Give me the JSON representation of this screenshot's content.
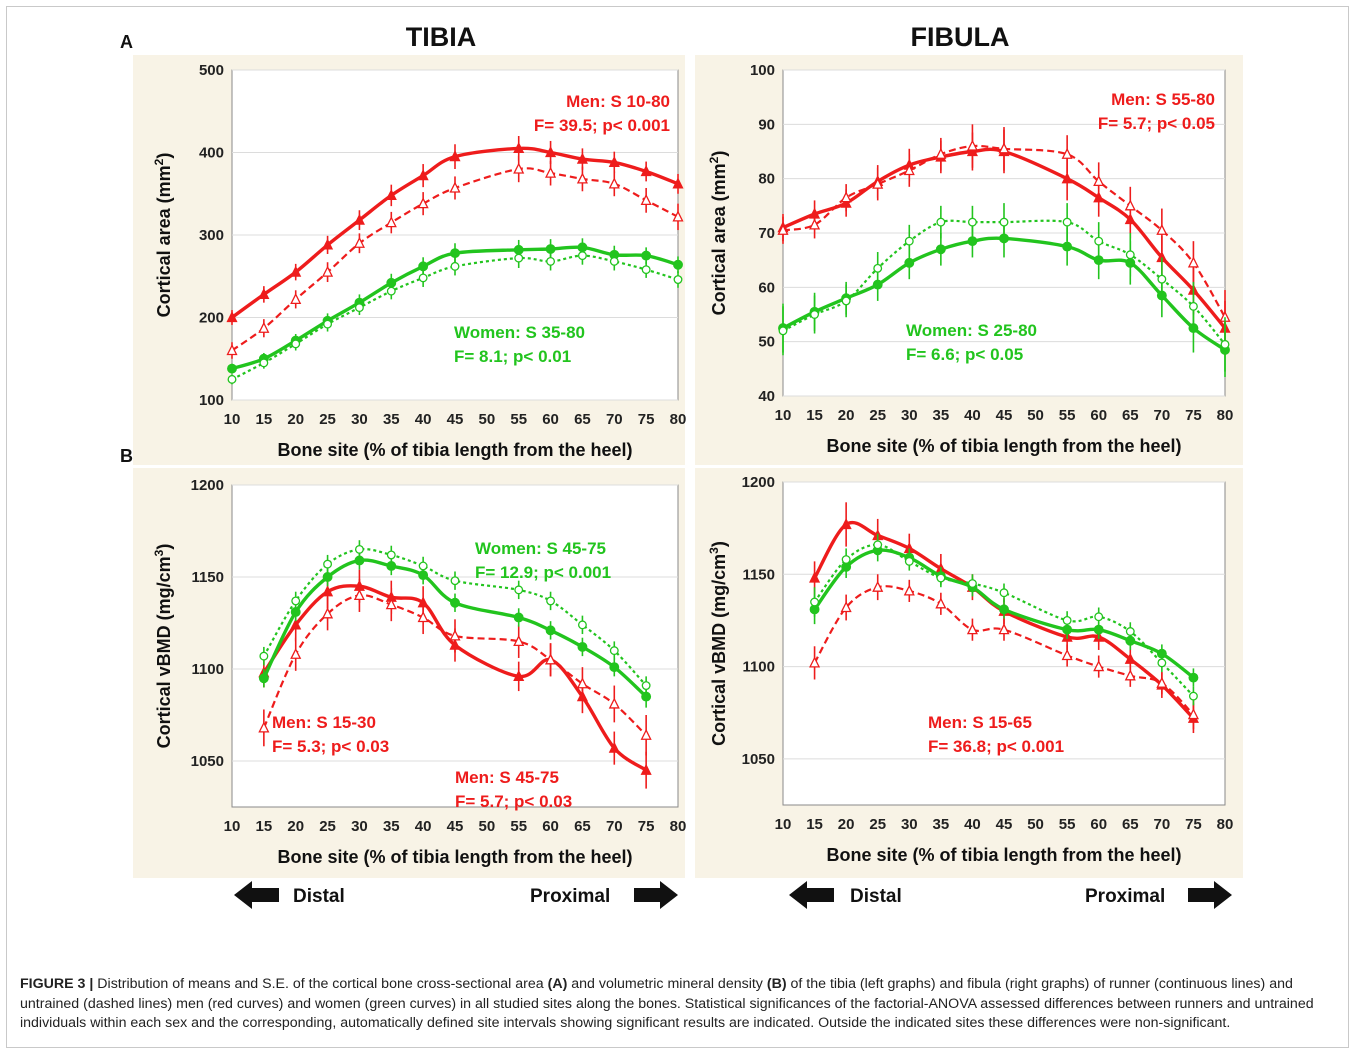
{
  "colors": {
    "men": "#ee1c1c",
    "women": "#22c41e",
    "panel_background": "#f8f3e6"
  },
  "panel_letters": {
    "a": "A",
    "b": "B"
  },
  "column_titles": {
    "tibia": "TIBIA",
    "fibula": "FIBULA"
  },
  "direction_labels": {
    "distal": "Distal",
    "proximal": "Proximal"
  },
  "caption": {
    "label": "FIGURE 3 |",
    "part1": "Distribution of means and S.E. of the cortical bone cross-sectional area",
    "ref_a": "(A)",
    "part2": "and volumetric mineral density",
    "ref_b": "(B)",
    "part3": "of the tibia (left graphs) and fibula (right graphs) of runner (continuous lines) and untrained (dashed lines) men (red curves) and women (green curves) in all studied sites along the bones. Statistical significances of the factorial-ANOVA assessed differences between runners and untrained individuals within each sex and the corresponding, automatically defined site intervals showing significant results are indicated. Outside the indicated sites these differences were non-significant."
  },
  "chart_data": [
    {
      "id": "tibia-area",
      "type": "line",
      "xlabel": "Bone site (% of tibia length from the heel)",
      "ylabel": "Cortical area (mm",
      "ylabel_sup": "2",
      "ylabel_end": ")",
      "xlim": [
        10,
        80
      ],
      "ylim": [
        100,
        500
      ],
      "xticks": [
        10,
        15,
        20,
        25,
        30,
        35,
        40,
        45,
        50,
        55,
        60,
        65,
        70,
        75,
        80
      ],
      "yticks": [
        100,
        200,
        300,
        400,
        500
      ],
      "x": [
        10,
        15,
        20,
        25,
        30,
        35,
        40,
        45,
        55,
        60,
        65,
        70,
        75,
        80
      ],
      "series": [
        {
          "sex": "men",
          "group": "runners",
          "line": "solid",
          "marker": "filled-triangle",
          "values": [
            200,
            228,
            255,
            288,
            318,
            348,
            372,
            395,
            405,
            400,
            392,
            388,
            377,
            362
          ],
          "se": [
            9,
            10,
            10,
            11,
            12,
            13,
            14,
            15,
            15,
            14,
            13,
            13,
            12,
            12
          ]
        },
        {
          "sex": "men",
          "group": "untrained",
          "line": "dashed",
          "marker": "open-triangle",
          "values": [
            160,
            187,
            222,
            255,
            290,
            315,
            338,
            357,
            380,
            375,
            368,
            362,
            342,
            322
          ],
          "se": [
            10,
            11,
            11,
            12,
            12,
            13,
            14,
            14,
            16,
            15,
            15,
            15,
            15,
            16
          ]
        },
        {
          "sex": "women",
          "group": "runners",
          "line": "solid",
          "marker": "filled-circle",
          "values": [
            138,
            150,
            172,
            196,
            218,
            242,
            262,
            278,
            282,
            283,
            285,
            276,
            275,
            264
          ],
          "se": [
            6,
            7,
            8,
            9,
            10,
            11,
            11,
            12,
            12,
            12,
            11,
            11,
            10,
            10
          ]
        },
        {
          "sex": "women",
          "group": "untrained",
          "line": "dotted",
          "marker": "open-circle",
          "values": [
            125,
            145,
            168,
            192,
            212,
            232,
            248,
            262,
            272,
            268,
            275,
            268,
            258,
            246
          ],
          "se": [
            6,
            7,
            8,
            9,
            9,
            10,
            11,
            11,
            12,
            11,
            11,
            11,
            10,
            10
          ]
        }
      ],
      "annotations": [
        {
          "color": "men",
          "lines": [
            "Men: S 10-80",
            "F= 39.5; p< 0.001"
          ]
        },
        {
          "color": "women",
          "lines": [
            "Women: S 35-80",
            "F= 8.1; p< 0.01"
          ]
        }
      ]
    },
    {
      "id": "fibula-area",
      "type": "line",
      "xlabel": "Bone site (% of tibia length from the heel)",
      "ylabel": "Cortical area (mm",
      "ylabel_sup": "2",
      "ylabel_end": ")",
      "xlim": [
        10,
        80
      ],
      "ylim": [
        40,
        100
      ],
      "xticks": [
        10,
        15,
        20,
        25,
        30,
        35,
        40,
        45,
        50,
        55,
        60,
        65,
        70,
        75,
        80
      ],
      "yticks": [
        40,
        50,
        60,
        70,
        80,
        90,
        100
      ],
      "x": [
        10,
        15,
        20,
        25,
        30,
        35,
        40,
        45,
        55,
        60,
        65,
        70,
        75,
        80
      ],
      "series": [
        {
          "sex": "men",
          "group": "runners",
          "line": "solid",
          "marker": "filled-triangle",
          "values": [
            71,
            73.5,
            75.5,
            79.5,
            82.5,
            84,
            85,
            85,
            80,
            76.5,
            72.5,
            65.5,
            59.5,
            52.5
          ],
          "se": [
            2.5,
            2.5,
            2.5,
            3,
            3,
            3,
            3.5,
            4,
            4,
            3.5,
            3.5,
            4,
            4.5,
            5
          ]
        },
        {
          "sex": "men",
          "group": "untrained",
          "line": "dashed",
          "marker": "open-triangle",
          "values": [
            70.5,
            71.5,
            76.5,
            79,
            81.5,
            84.5,
            86,
            85.5,
            84.5,
            79.5,
            75,
            70.5,
            64.5,
            54.5
          ],
          "se": [
            2.5,
            2.5,
            2.5,
            3,
            3,
            3,
            4,
            4,
            3.5,
            3.5,
            3.5,
            4,
            4,
            5
          ]
        },
        {
          "sex": "women",
          "group": "runners",
          "line": "solid",
          "marker": "filled-circle",
          "values": [
            52.5,
            55.5,
            58,
            60.5,
            64.5,
            67,
            68.5,
            69,
            67.5,
            65,
            64.5,
            58.5,
            52.5,
            48.5
          ],
          "se": [
            4.5,
            3.5,
            3,
            3,
            3,
            3,
            3,
            3.5,
            3.5,
            3.5,
            4,
            4,
            4.5,
            5
          ]
        },
        {
          "sex": "women",
          "group": "untrained",
          "line": "dotted",
          "marker": "open-circle",
          "values": [
            52,
            55,
            57.5,
            63.5,
            68.5,
            72,
            72,
            72,
            72,
            68.5,
            66,
            61.5,
            56.5,
            49.5
          ],
          "se": [
            4.5,
            3.5,
            3,
            3,
            3,
            3,
            3,
            3.5,
            3.5,
            3.5,
            4,
            4,
            4.5,
            5
          ]
        }
      ],
      "annotations": [
        {
          "color": "men",
          "lines": [
            "Men: S 55-80",
            "F= 5.7; p< 0.05"
          ]
        },
        {
          "color": "women",
          "lines": [
            "Women: S 25-80",
            "F= 6.6; p< 0.05"
          ]
        }
      ]
    },
    {
      "id": "tibia-vbmd",
      "type": "line",
      "xlabel": "Bone site (% of tibia length from the heel)",
      "ylabel": "Cortical vBMD (mg/cm",
      "ylabel_sup": "3",
      "ylabel_end": ")",
      "xlim": [
        10,
        80
      ],
      "ylim": [
        1025,
        1200
      ],
      "xticks": [
        10,
        15,
        20,
        25,
        30,
        35,
        40,
        45,
        50,
        55,
        60,
        65,
        70,
        75,
        80
      ],
      "yticks": [
        1050,
        1100,
        1150,
        1200
      ],
      "x": [
        15,
        20,
        25,
        30,
        35,
        40,
        45,
        55,
        60,
        65,
        70,
        75
      ],
      "series": [
        {
          "sex": "men",
          "group": "runners",
          "line": "solid",
          "marker": "filled-triangle",
          "values": [
            1098,
            1124,
            1142,
            1145,
            1139,
            1136,
            1113,
            1096,
            1105,
            1085,
            1057,
            1045
          ],
          "se": [
            8,
            9,
            9,
            9,
            9,
            9,
            9,
            8,
            9,
            9,
            9,
            10
          ]
        },
        {
          "sex": "men",
          "group": "untrained",
          "line": "dashed",
          "marker": "open-triangle",
          "values": [
            1068,
            1108,
            1130,
            1140,
            1135,
            1128,
            1118,
            1115,
            1105,
            1092,
            1081,
            1064
          ],
          "se": [
            10,
            9,
            9,
            9,
            9,
            9,
            9,
            9,
            9,
            9,
            10,
            11
          ]
        },
        {
          "sex": "women",
          "group": "runners",
          "line": "solid",
          "marker": "filled-circle",
          "values": [
            1095,
            1131,
            1150,
            1159,
            1156,
            1151,
            1136,
            1128,
            1121,
            1112,
            1101,
            1085
          ],
          "se": [
            5,
            5,
            5,
            5,
            5,
            5,
            5,
            5,
            5,
            5,
            5,
            6
          ]
        },
        {
          "sex": "women",
          "group": "untrained",
          "line": "dotted",
          "marker": "open-circle",
          "values": [
            1107,
            1137,
            1157,
            1165,
            1162,
            1156,
            1148,
            1143,
            1137,
            1124,
            1110,
            1091
          ],
          "se": [
            5,
            5,
            5,
            5,
            5,
            5,
            5,
            5,
            5,
            5,
            5,
            5
          ]
        }
      ],
      "annotations": [
        {
          "color": "women",
          "lines": [
            "Women: S 45-75",
            "F= 12.9; p< 0.001"
          ]
        },
        {
          "color": "men",
          "lines": [
            "Men: S 15-30",
            "F= 5.3; p< 0.03"
          ]
        },
        {
          "color": "men",
          "lines": [
            "Men: S 45-75",
            "F= 5.7; p< 0.03"
          ]
        }
      ]
    },
    {
      "id": "fibula-vbmd",
      "type": "line",
      "xlabel": "Bone site (% of tibia length from the heel)",
      "ylabel": "Cortical vBMD (mg/cm",
      "ylabel_sup": "3",
      "ylabel_end": ")",
      "xlim": [
        10,
        80
      ],
      "ylim": [
        1025,
        1200
      ],
      "xticks": [
        10,
        15,
        20,
        25,
        30,
        35,
        40,
        45,
        50,
        55,
        60,
        65,
        70,
        75,
        80
      ],
      "yticks": [
        1050,
        1100,
        1150,
        1200
      ],
      "x": [
        15,
        20,
        25,
        30,
        35,
        40,
        45,
        55,
        60,
        65,
        70,
        75
      ],
      "series": [
        {
          "sex": "men",
          "group": "runners",
          "line": "solid",
          "marker": "filled-triangle",
          "values": [
            1148,
            1177,
            1171,
            1164,
            1153,
            1143,
            1130,
            1116,
            1116,
            1104,
            1090,
            1072
          ],
          "se": [
            9,
            12,
            9,
            8,
            8,
            7,
            7,
            7,
            7,
            7,
            7,
            8
          ]
        },
        {
          "sex": "men",
          "group": "untrained",
          "line": "dashed",
          "marker": "open-triangle",
          "values": [
            1102,
            1132,
            1143,
            1141,
            1134,
            1120,
            1120,
            1106,
            1100,
            1095,
            1091,
            1074
          ],
          "se": [
            9,
            7,
            7,
            6,
            6,
            6,
            6,
            6,
            6,
            6,
            6,
            8
          ]
        },
        {
          "sex": "women",
          "group": "runners",
          "line": "solid",
          "marker": "filled-circle",
          "values": [
            1131,
            1154,
            1163,
            1159,
            1149,
            1143,
            1131,
            1120,
            1120,
            1114,
            1107,
            1094
          ],
          "se": [
            8,
            6,
            6,
            5,
            5,
            5,
            5,
            5,
            5,
            5,
            5,
            5
          ]
        },
        {
          "sex": "women",
          "group": "untrained",
          "line": "dotted",
          "marker": "open-circle",
          "values": [
            1135,
            1158,
            1166,
            1157,
            1148,
            1145,
            1140,
            1125,
            1127,
            1119,
            1102,
            1084
          ],
          "se": [
            8,
            6,
            6,
            5,
            5,
            5,
            5,
            5,
            5,
            5,
            5,
            5
          ]
        }
      ],
      "annotations": [
        {
          "color": "men",
          "lines": [
            "Men: S 15-65",
            "F= 36.8; p< 0.001"
          ]
        }
      ]
    }
  ]
}
